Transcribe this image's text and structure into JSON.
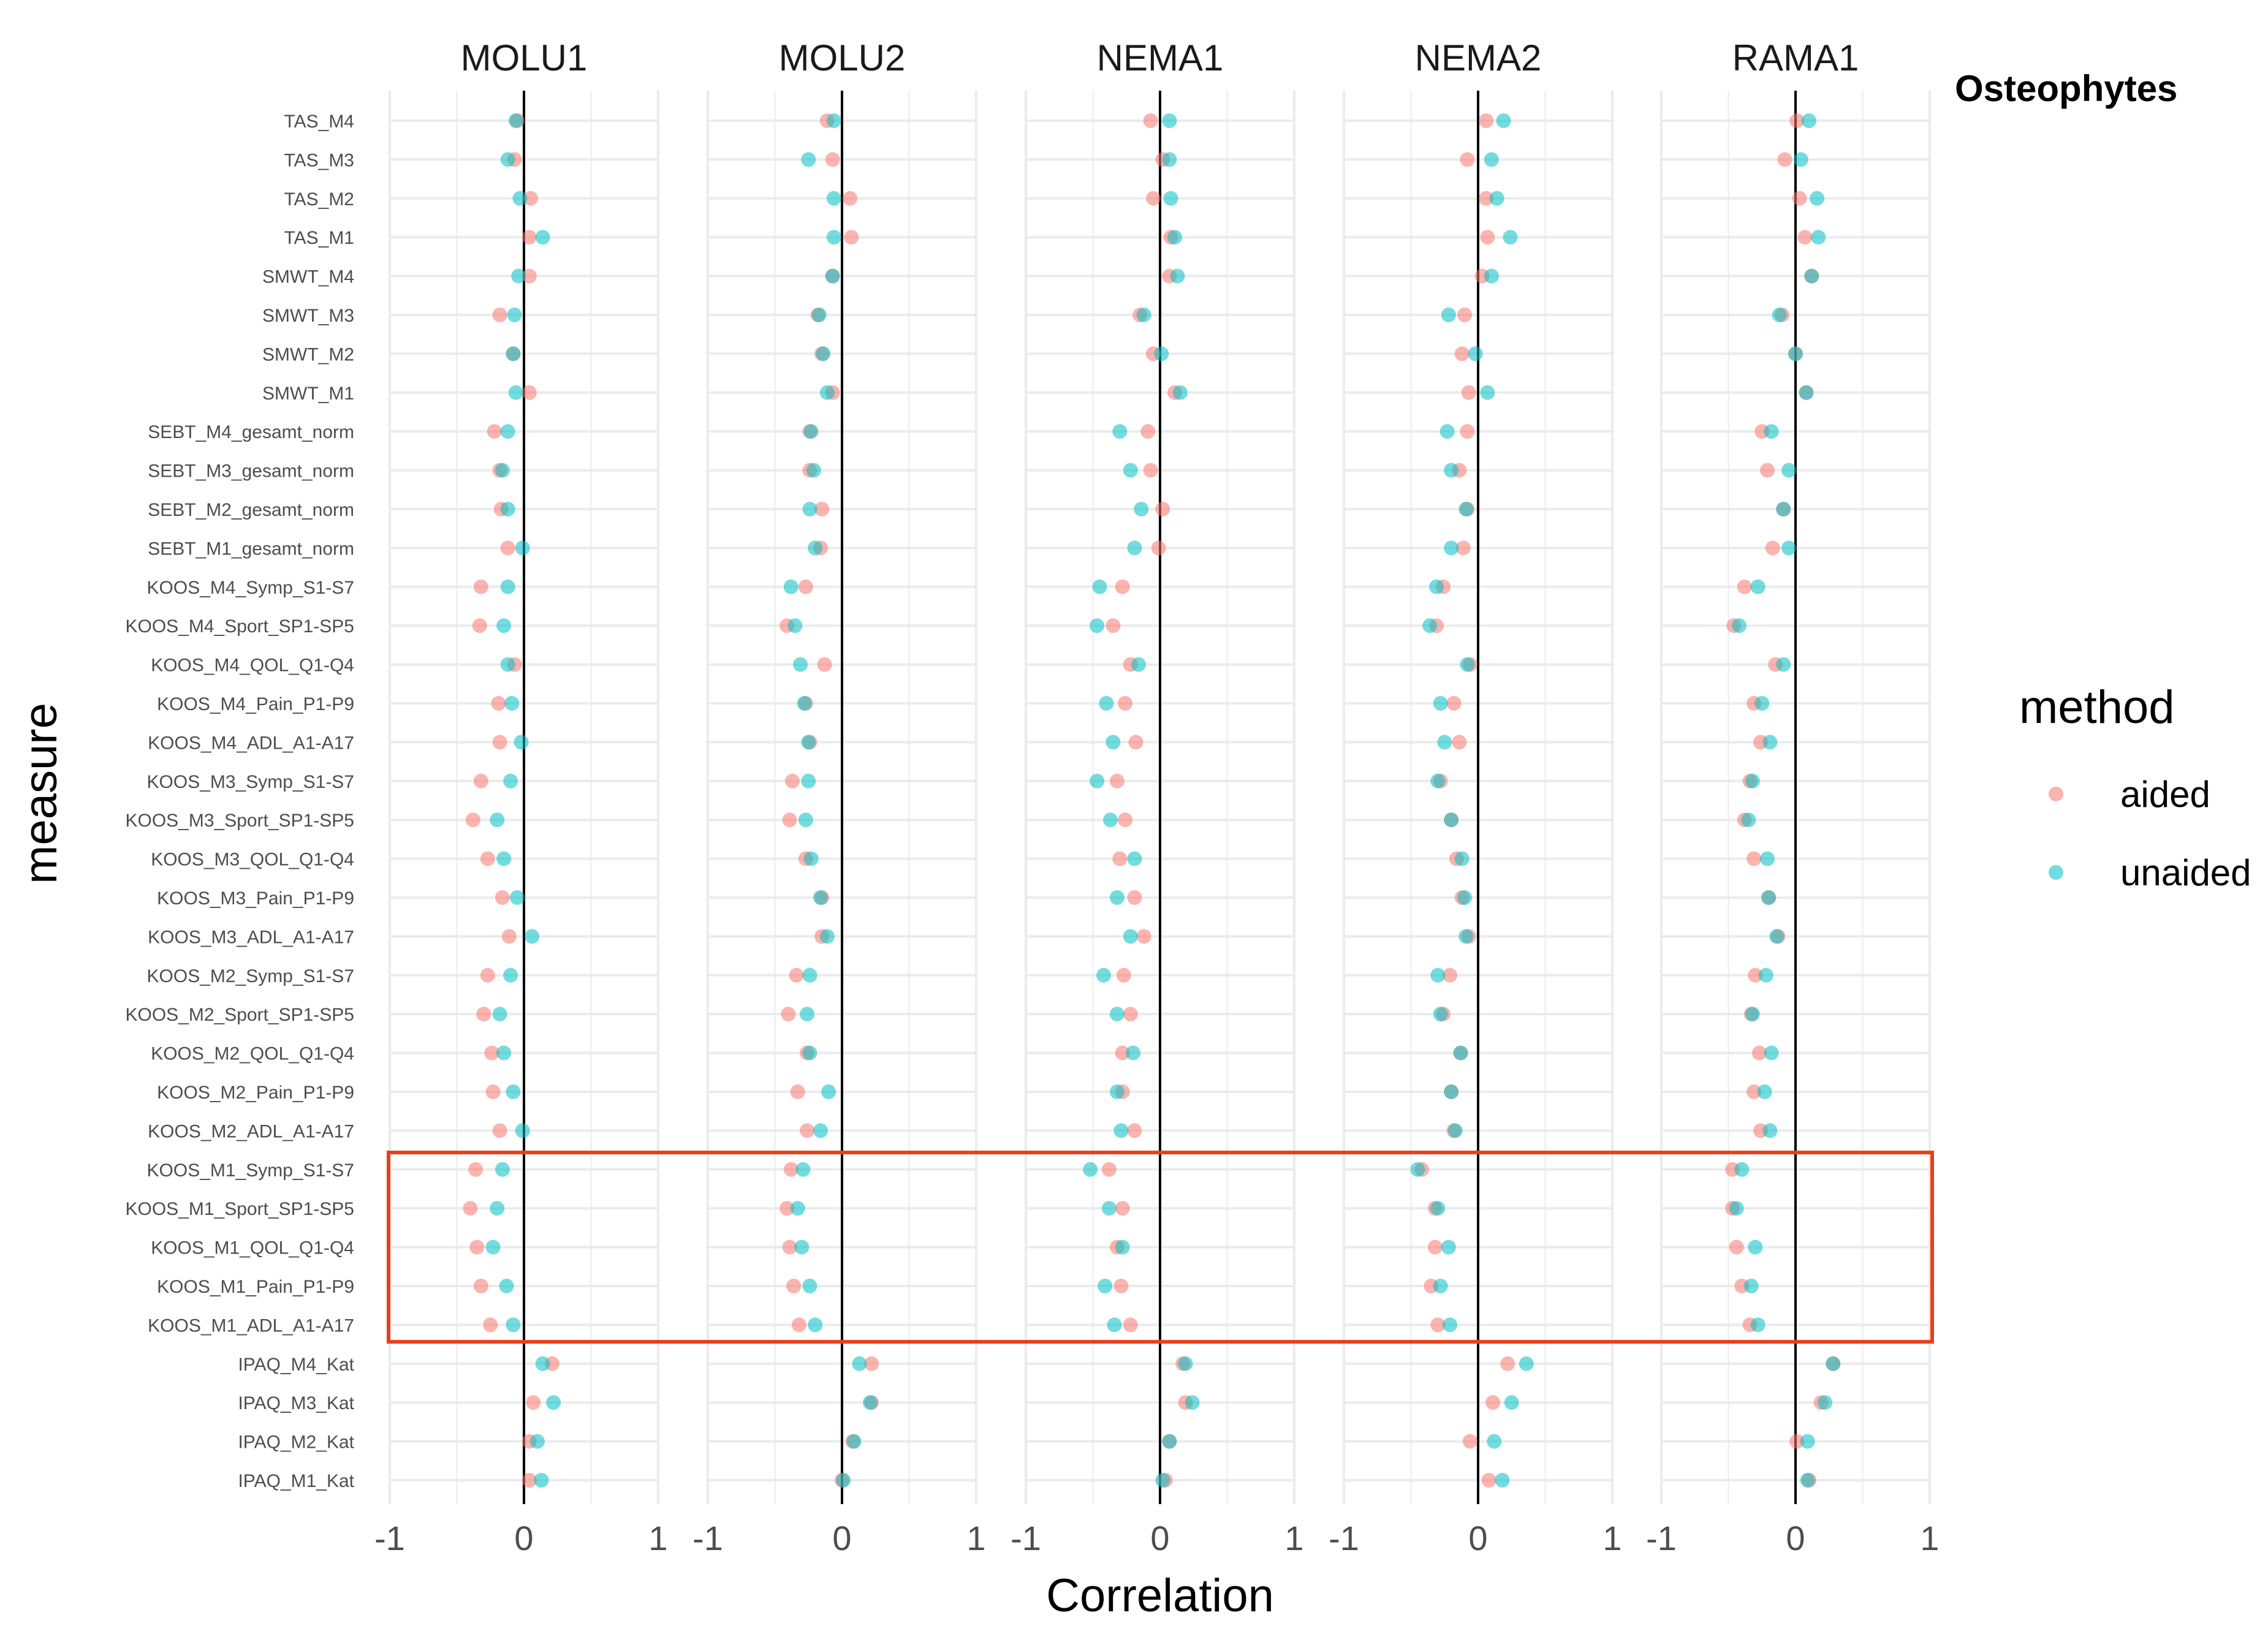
{
  "colors": {
    "aided": "#F8766D",
    "unaided": "#00BFC4",
    "grid": "#ebebeb",
    "zero_line": "#000000",
    "highlight_box": "#E8401C"
  },
  "figure_title": "Osteophytes",
  "legend": {
    "title": "method",
    "items": [
      "aided",
      "unaided"
    ]
  },
  "chart_data": {
    "type": "scatter",
    "title": "Osteophytes",
    "xlabel": "Correlation",
    "ylabel": "measure",
    "xlim": [
      -1,
      1
    ],
    "xticks": [
      -1,
      0,
      1
    ],
    "tick_labels": [
      "-1",
      "0",
      "1"
    ],
    "grid": true,
    "legend_position": "right",
    "highlighted_measures": [
      "KOOS_M1_Symp_S1-S7",
      "KOOS_M1_Sport_SP1-SP5",
      "KOOS_M1_QOL_Q1-Q4",
      "KOOS_M1_Pain_P1-P9",
      "KOOS_M1_ADL_A1-A17"
    ],
    "panels": [
      "MOLU1",
      "MOLU2",
      "NEMA1",
      "NEMA2",
      "RAMA1"
    ],
    "measures": [
      "TAS_M4",
      "TAS_M3",
      "TAS_M2",
      "TAS_M1",
      "SMWT_M4",
      "SMWT_M3",
      "SMWT_M2",
      "SMWT_M1",
      "SEBT_M4_gesamt_norm",
      "SEBT_M3_gesamt_norm",
      "SEBT_M2_gesamt_norm",
      "SEBT_M1_gesamt_norm",
      "KOOS_M4_Symp_S1-S7",
      "KOOS_M4_Sport_SP1-SP5",
      "KOOS_M4_QOL_Q1-Q4",
      "KOOS_M4_Pain_P1-P9",
      "KOOS_M4_ADL_A1-A17",
      "KOOS_M3_Symp_S1-S7",
      "KOOS_M3_Sport_SP1-SP5",
      "KOOS_M3_QOL_Q1-Q4",
      "KOOS_M3_Pain_P1-P9",
      "KOOS_M3_ADL_A1-A17",
      "KOOS_M2_Symp_S1-S7",
      "KOOS_M2_Sport_SP1-SP5",
      "KOOS_M2_QOL_Q1-Q4",
      "KOOS_M2_Pain_P1-P9",
      "KOOS_M2_ADL_A1-A17",
      "KOOS_M1_Symp_S1-S7",
      "KOOS_M1_Sport_SP1-SP5",
      "KOOS_M1_QOL_Q1-Q4",
      "KOOS_M1_Pain_P1-P9",
      "KOOS_M1_ADL_A1-A17",
      "IPAQ_M4_Kat",
      "IPAQ_M3_Kat",
      "IPAQ_M2_Kat",
      "IPAQ_M1_Kat"
    ],
    "series": [
      {
        "name": "aided",
        "values": {
          "MOLU1": [
            -0.05,
            -0.07,
            0.05,
            0.04,
            0.04,
            -0.18,
            -0.08,
            0.04,
            -0.22,
            -0.18,
            -0.17,
            -0.12,
            -0.32,
            -0.33,
            -0.07,
            -0.19,
            -0.18,
            -0.32,
            -0.38,
            -0.27,
            -0.16,
            -0.11,
            -0.27,
            -0.3,
            -0.24,
            -0.23,
            -0.18,
            -0.36,
            -0.4,
            -0.35,
            -0.32,
            -0.25,
            0.21,
            0.07,
            0.04,
            0.04
          ],
          "MOLU2": [
            -0.11,
            -0.07,
            0.06,
            0.07,
            -0.07,
            -0.18,
            -0.15,
            -0.07,
            -0.24,
            -0.24,
            -0.15,
            -0.16,
            -0.27,
            -0.41,
            -0.13,
            -0.27,
            -0.24,
            -0.37,
            -0.39,
            -0.27,
            -0.15,
            -0.15,
            -0.34,
            -0.4,
            -0.26,
            -0.33,
            -0.26,
            -0.38,
            -0.41,
            -0.39,
            -0.36,
            -0.32,
            0.22,
            0.22,
            0.08,
            0.0
          ],
          "NEMA1": [
            -0.07,
            0.02,
            -0.05,
            0.08,
            0.07,
            -0.15,
            -0.05,
            0.11,
            -0.09,
            -0.07,
            0.02,
            -0.01,
            -0.28,
            -0.35,
            -0.22,
            -0.26,
            -0.18,
            -0.32,
            -0.26,
            -0.3,
            -0.19,
            -0.12,
            -0.27,
            -0.22,
            -0.28,
            -0.28,
            -0.19,
            -0.38,
            -0.28,
            -0.32,
            -0.29,
            -0.22,
            0.17,
            0.19,
            0.07,
            0.04
          ],
          "NEMA2": [
            0.06,
            -0.08,
            0.06,
            0.07,
            0.03,
            -0.1,
            -0.12,
            -0.07,
            -0.08,
            -0.14,
            -0.08,
            -0.11,
            -0.26,
            -0.31,
            -0.06,
            -0.18,
            -0.14,
            -0.28,
            -0.2,
            -0.16,
            -0.12,
            -0.07,
            -0.21,
            -0.26,
            -0.13,
            -0.2,
            -0.18,
            -0.42,
            -0.32,
            -0.32,
            -0.35,
            -0.3,
            0.22,
            0.11,
            -0.06,
            0.08
          ],
          "RAMA1": [
            0.01,
            -0.08,
            0.03,
            0.07,
            0.12,
            -0.1,
            0.0,
            0.08,
            -0.25,
            -0.21,
            -0.09,
            -0.17,
            -0.38,
            -0.46,
            -0.15,
            -0.31,
            -0.26,
            -0.34,
            -0.38,
            -0.31,
            -0.2,
            -0.13,
            -0.3,
            -0.33,
            -0.27,
            -0.31,
            -0.26,
            -0.47,
            -0.47,
            -0.44,
            -0.4,
            -0.34,
            0.28,
            0.19,
            0.01,
            0.1
          ]
        }
      },
      {
        "name": "unaided",
        "values": {
          "MOLU1": [
            -0.06,
            -0.12,
            -0.03,
            0.14,
            -0.04,
            -0.07,
            -0.08,
            -0.06,
            -0.12,
            -0.16,
            -0.12,
            -0.01,
            -0.12,
            -0.15,
            -0.12,
            -0.09,
            -0.02,
            -0.1,
            -0.2,
            -0.15,
            -0.05,
            0.06,
            -0.1,
            -0.18,
            -0.15,
            -0.08,
            -0.01,
            -0.16,
            -0.2,
            -0.23,
            -0.13,
            -0.08,
            0.14,
            0.22,
            0.1,
            0.13
          ],
          "MOLU2": [
            -0.06,
            -0.25,
            -0.06,
            -0.06,
            -0.07,
            -0.17,
            -0.14,
            -0.11,
            -0.23,
            -0.21,
            -0.24,
            -0.2,
            -0.38,
            -0.35,
            -0.31,
            -0.28,
            -0.25,
            -0.25,
            -0.27,
            -0.23,
            -0.16,
            -0.11,
            -0.24,
            -0.26,
            -0.24,
            -0.1,
            -0.16,
            -0.29,
            -0.33,
            -0.3,
            -0.24,
            -0.2,
            0.13,
            0.21,
            0.09,
            0.01
          ],
          "NEMA1": [
            0.07,
            0.07,
            0.08,
            0.11,
            0.13,
            -0.12,
            0.01,
            0.15,
            -0.3,
            -0.22,
            -0.14,
            -0.19,
            -0.45,
            -0.47,
            -0.16,
            -0.4,
            -0.35,
            -0.47,
            -0.37,
            -0.19,
            -0.32,
            -0.22,
            -0.42,
            -0.32,
            -0.2,
            -0.32,
            -0.29,
            -0.52,
            -0.38,
            -0.28,
            -0.41,
            -0.34,
            0.19,
            0.24,
            0.07,
            0.02
          ],
          "NEMA2": [
            0.19,
            0.1,
            0.14,
            0.24,
            0.1,
            -0.22,
            -0.02,
            0.07,
            -0.23,
            -0.2,
            -0.09,
            -0.2,
            -0.31,
            -0.36,
            -0.08,
            -0.28,
            -0.25,
            -0.3,
            -0.2,
            -0.12,
            -0.1,
            -0.09,
            -0.3,
            -0.28,
            -0.13,
            -0.2,
            -0.17,
            -0.45,
            -0.3,
            -0.22,
            -0.28,
            -0.21,
            0.36,
            0.25,
            0.12,
            0.18
          ],
          "RAMA1": [
            0.1,
            0.04,
            0.16,
            0.17,
            0.12,
            -0.12,
            0.0,
            0.08,
            -0.18,
            -0.05,
            -0.09,
            -0.05,
            -0.28,
            -0.42,
            -0.09,
            -0.25,
            -0.19,
            -0.32,
            -0.35,
            -0.21,
            -0.2,
            -0.14,
            -0.22,
            -0.32,
            -0.18,
            -0.23,
            -0.19,
            -0.4,
            -0.44,
            -0.3,
            -0.33,
            -0.28,
            0.28,
            0.22,
            0.09,
            0.09
          ]
        }
      }
    ]
  }
}
